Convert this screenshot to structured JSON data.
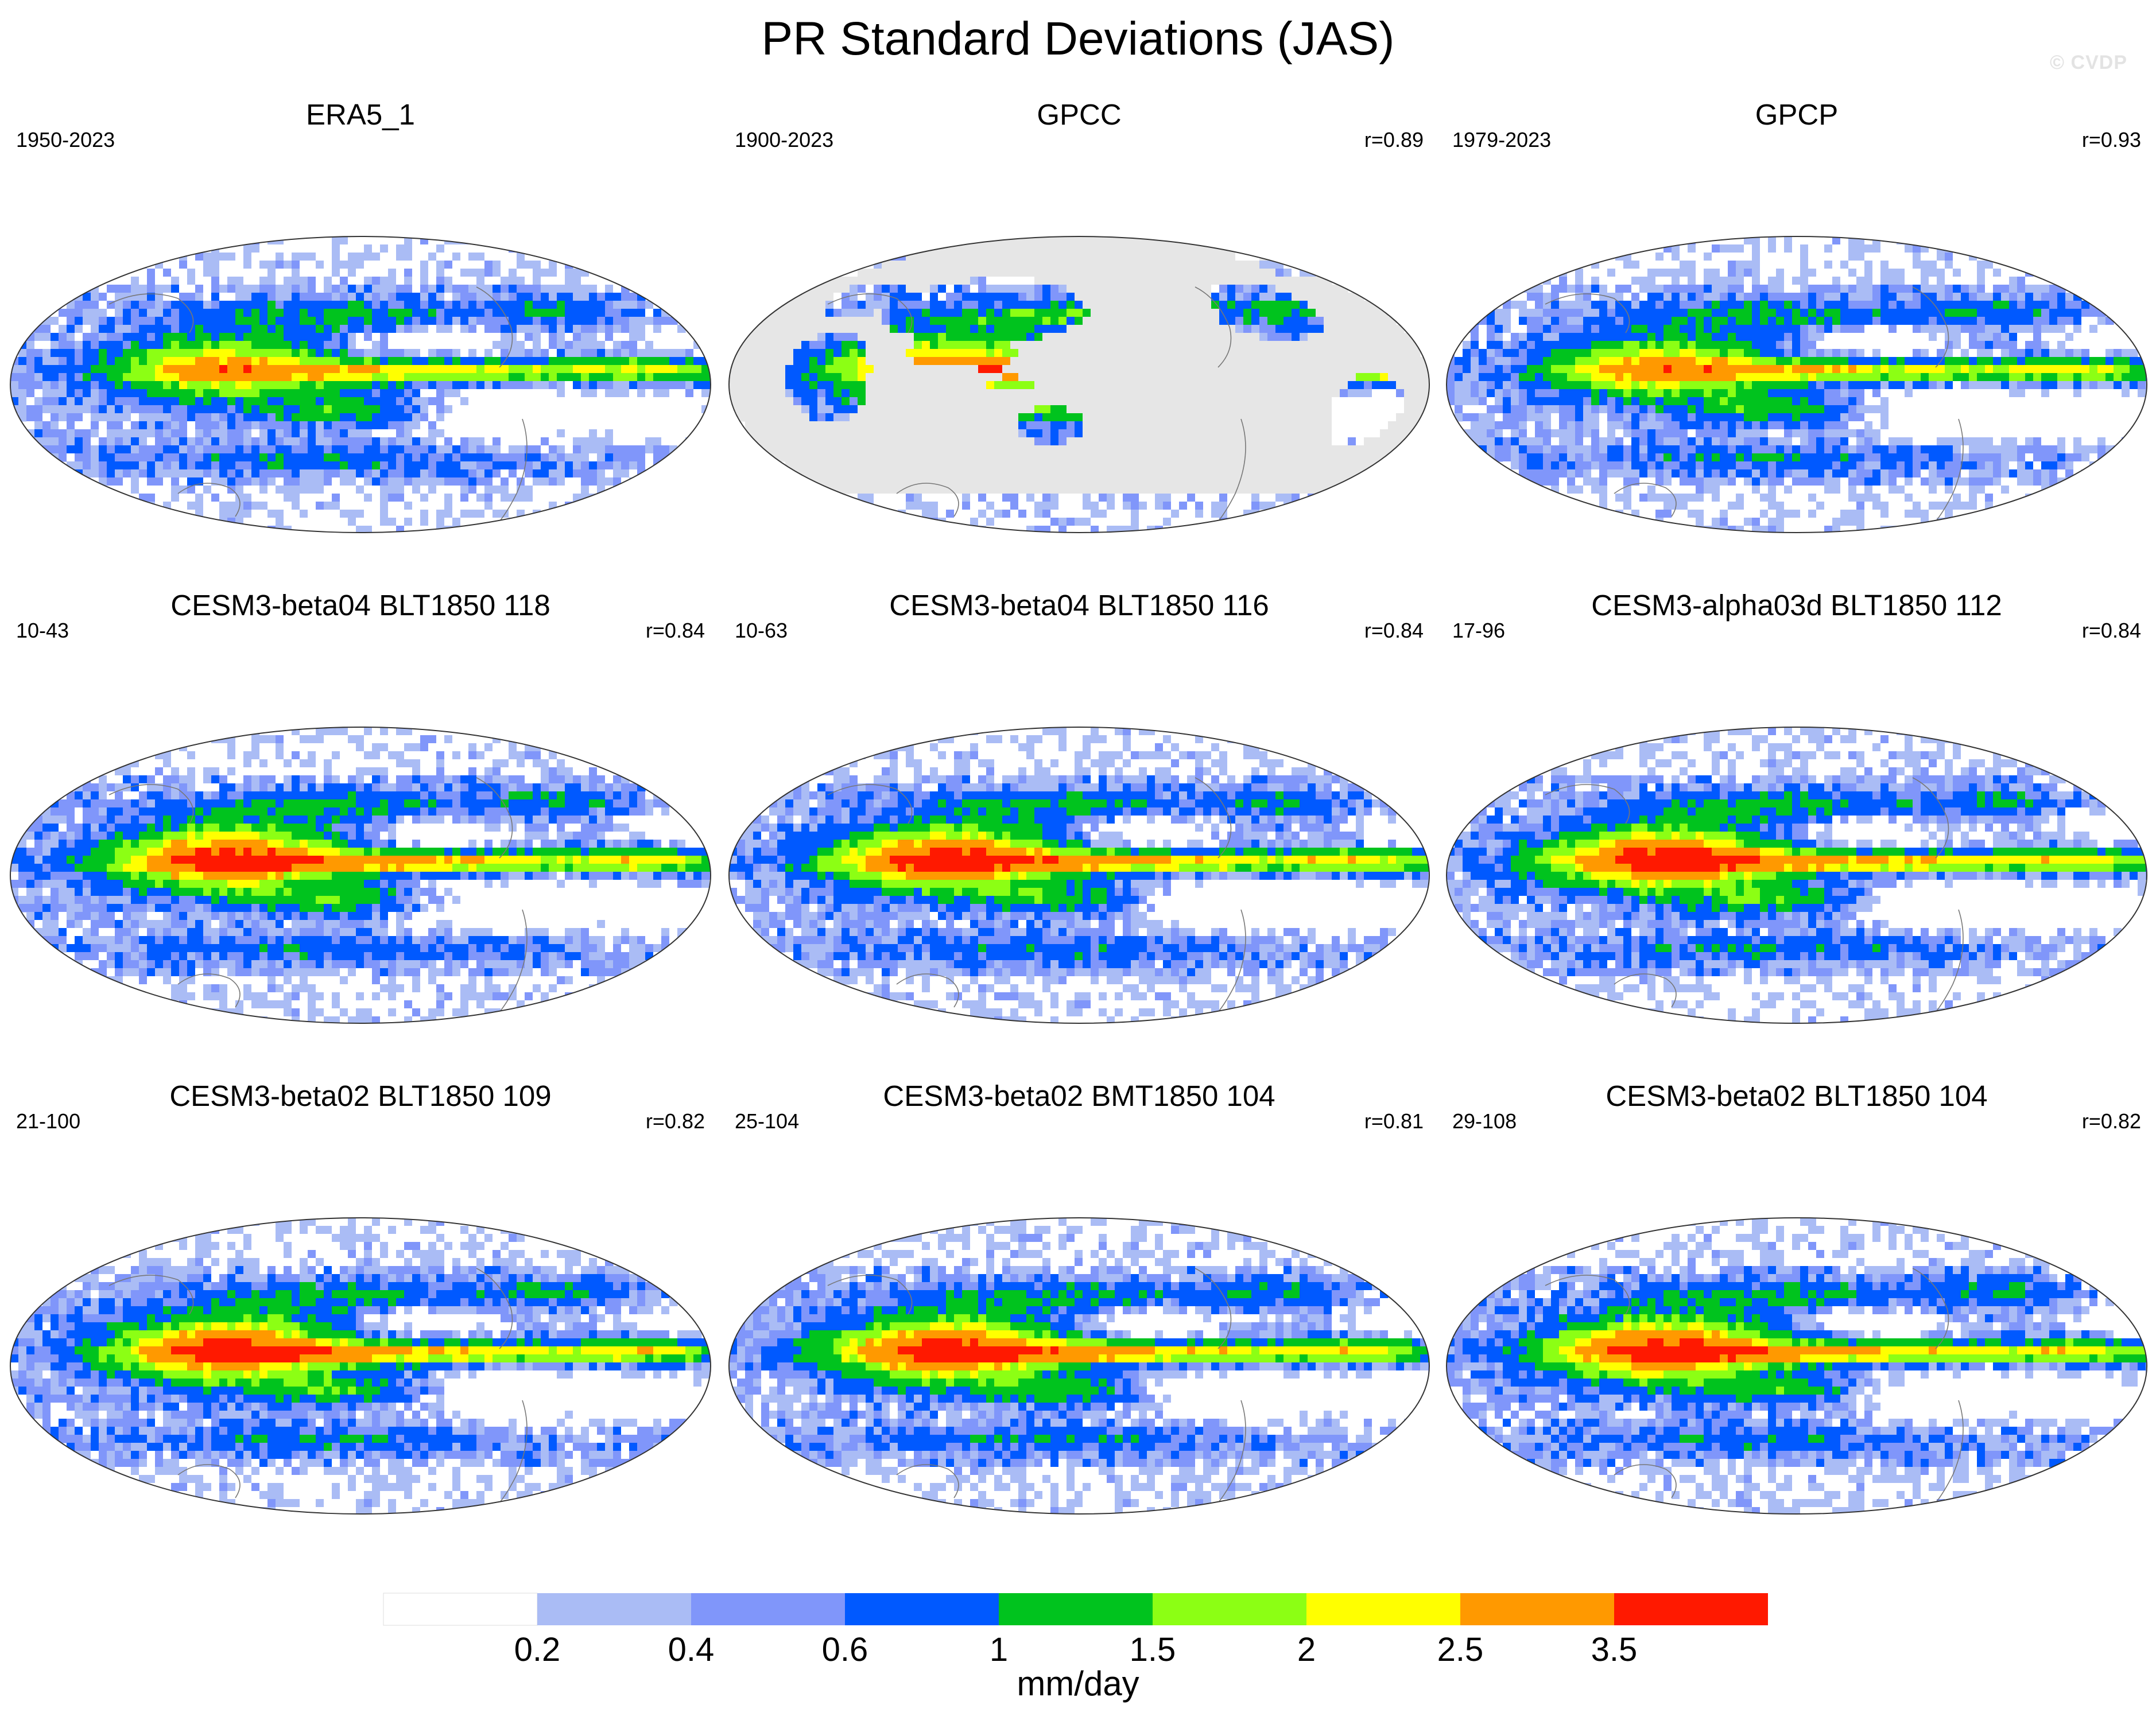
{
  "figure": {
    "title": "PR Standard Deviations (JAS)",
    "watermark": "© CVDP"
  },
  "chart_data": {
    "type": "heatmap",
    "projection": "robinson",
    "panels": [
      {
        "title": "ERA5_1",
        "years": "1950-2023",
        "corr": "",
        "mode": "full"
      },
      {
        "title": "GPCC",
        "years": "1900-2023",
        "corr": "r=0.89",
        "mode": "land"
      },
      {
        "title": "GPCP",
        "years": "1979-2023",
        "corr": "r=0.93",
        "mode": "full"
      },
      {
        "title": "CESM3-beta04 BLT1850 118",
        "years": "10-43",
        "corr": "r=0.84",
        "mode": "model"
      },
      {
        "title": "CESM3-beta04 BLT1850 116",
        "years": "10-63",
        "corr": "r=0.84",
        "mode": "model"
      },
      {
        "title": "CESM3-alpha03d BLT1850 112",
        "years": "17-96",
        "corr": "r=0.84",
        "mode": "model"
      },
      {
        "title": "CESM3-beta02 BLT1850 109",
        "years": "21-100",
        "corr": "r=0.82",
        "mode": "model"
      },
      {
        "title": "CESM3-beta02 BMT1850 104",
        "years": "25-104",
        "corr": "r=0.81",
        "mode": "model"
      },
      {
        "title": "CESM3-beta02 BLT1850 104",
        "years": "29-108",
        "corr": "r=0.82",
        "mode": "model"
      }
    ],
    "colorbar": {
      "levels": [
        "0.2",
        "0.4",
        "0.6",
        "1",
        "1.5",
        "2",
        "2.5",
        "3.5"
      ],
      "colors": [
        "#ffffff",
        "#aabcf5",
        "#8096fa",
        "#0059ff",
        "#00c31e",
        "#8cff14",
        "#ffff00",
        "#ff9900",
        "#ff1900"
      ],
      "units": "mm/day"
    },
    "missing_color": "#e6e6e6"
  }
}
